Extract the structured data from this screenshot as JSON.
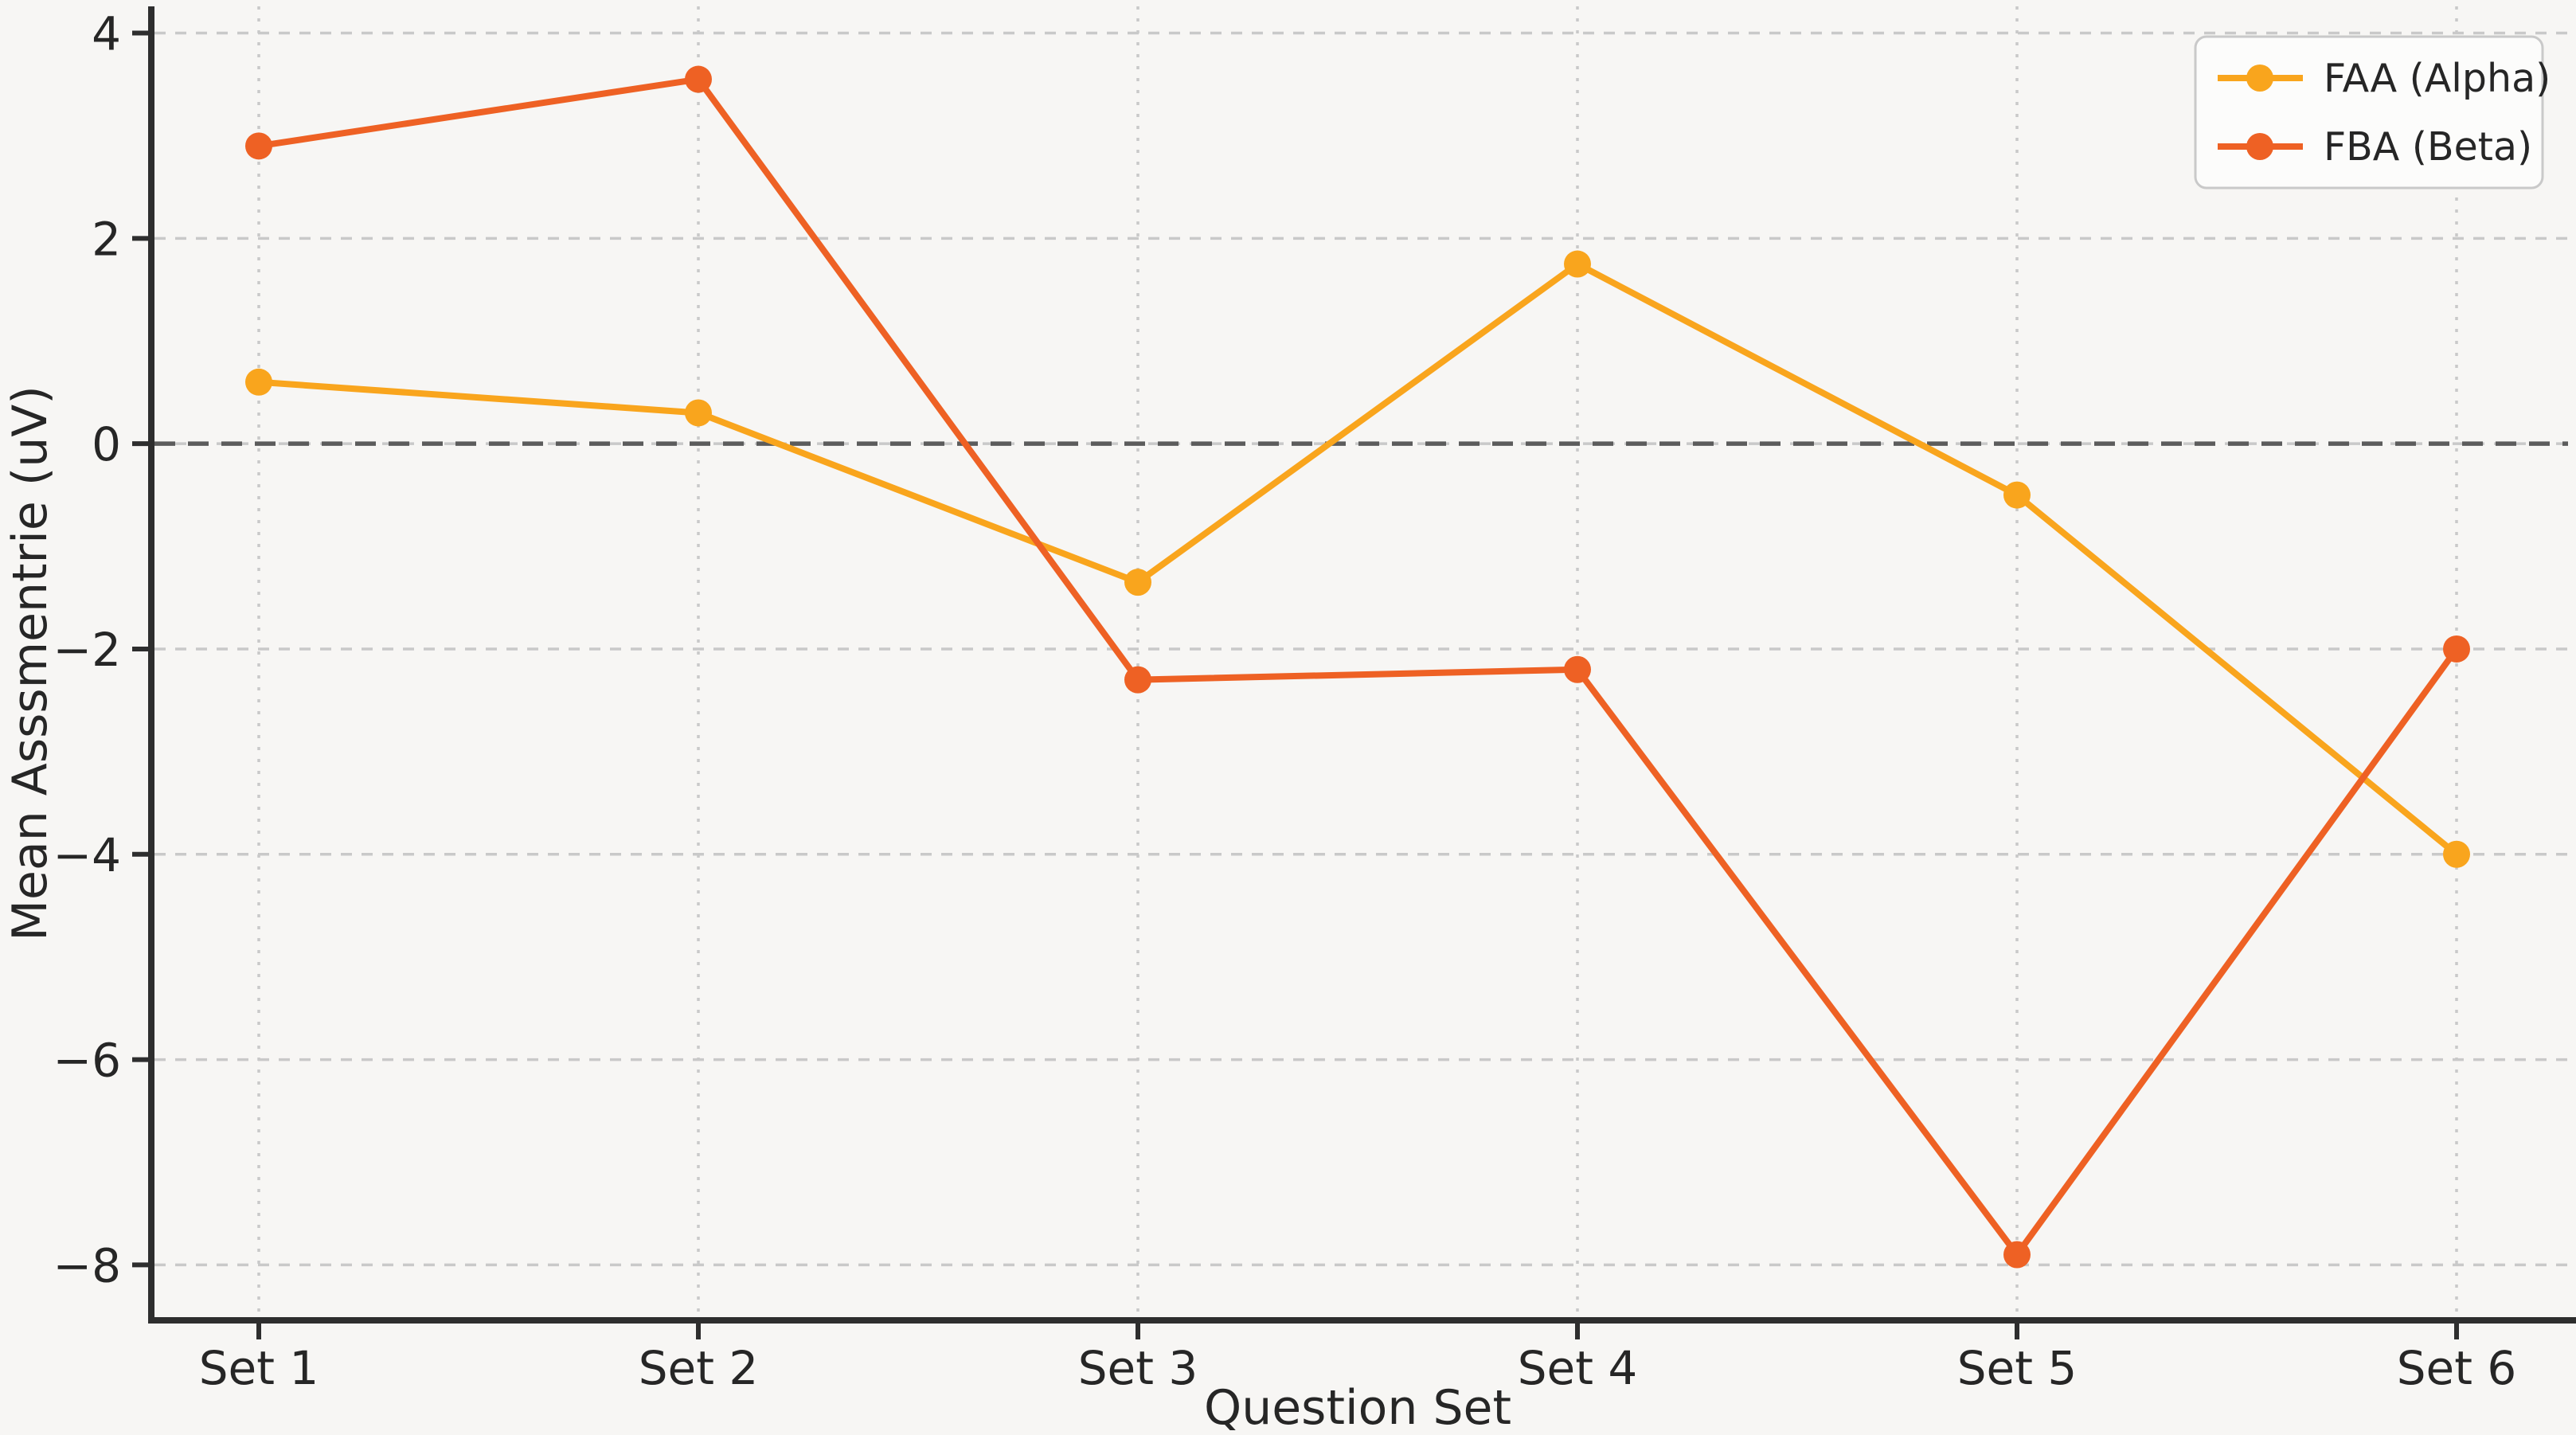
{
  "chart_data": {
    "type": "line",
    "categories": [
      "Set 1",
      "Set 2",
      "Set 3",
      "Set 4",
      "Set 5",
      "Set 6"
    ],
    "series": [
      {
        "name": "FAA (Alpha)",
        "color": "#F9A51D",
        "marker": "circle",
        "values": [
          0.6,
          0.3,
          -1.35,
          1.75,
          -0.5,
          -4.0
        ]
      },
      {
        "name": "FBA (Beta)",
        "color": "#EE6124",
        "marker": "circle",
        "values": [
          2.9,
          3.55,
          -2.3,
          -2.2,
          -7.9,
          -2.0
        ]
      }
    ],
    "title": "",
    "xlabel": "Question Set",
    "ylabel": "Mean Asssmentrie (uV)",
    "yticks": [
      4,
      2,
      0,
      -2,
      -4,
      -6,
      -8
    ],
    "ylim": [
      -8.54,
      4.26
    ],
    "grid": true,
    "gridline_color": "#c9c9c9",
    "zero_line": {
      "show": true,
      "style": "dashed",
      "color": "#5c5c5c"
    },
    "background": "#f7f6f4",
    "axis_color": "#2e2e2e",
    "legend": {
      "position": "upper right",
      "background": "#fcfcfb",
      "border_color": "#c9c9c9",
      "entries": [
        "FAA (Alpha)",
        "FBA (Beta)"
      ]
    }
  }
}
